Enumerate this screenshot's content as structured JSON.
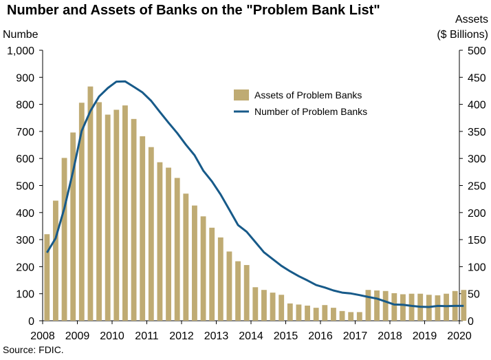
{
  "chart_data": {
    "type": "bar+line",
    "title": "Number and Assets of Banks on the \"Problem Bank List\"",
    "ylabel_left": "Numbe",
    "ylabel_right_line1": "Assets",
    "ylabel_right_line2": "($ Billions)",
    "source": "Source: FDIC.",
    "ylim_left": [
      0,
      1000
    ],
    "ylim_right": [
      0,
      500
    ],
    "yticks_left": [
      "0",
      "100",
      "200",
      "300",
      "400",
      "500",
      "600",
      "700",
      "800",
      "900",
      "1,000"
    ],
    "yticks_right": [
      "0",
      "50",
      "100",
      "150",
      "200",
      "250",
      "300",
      "350",
      "400",
      "450",
      "500"
    ],
    "xticks": [
      "2008",
      "2009",
      "2010",
      "2011",
      "2012",
      "2013",
      "2014",
      "2015",
      "2016",
      "2017",
      "2018",
      "2019",
      "2020"
    ],
    "legend_placement": "center-right",
    "x_start_year": 2008,
    "points_per_year": 4,
    "series": [
      {
        "name": "Assets of Problem Banks",
        "kind": "bar",
        "axis": "right",
        "color": "#bfab73",
        "values": [
          160,
          222,
          301,
          348,
          403,
          433,
          404,
          381,
          390,
          398,
          373,
          341,
          321,
          293,
          283,
          264,
          235,
          213,
          193,
          172,
          154,
          128,
          110,
          103,
          62,
          57,
          52,
          48,
          32,
          30,
          28,
          24,
          29,
          24,
          18,
          16,
          16,
          57,
          56,
          55,
          51,
          49,
          50,
          50,
          48,
          47,
          50,
          55,
          57
        ]
      },
      {
        "name": "Number of Problem Banks",
        "kind": "line",
        "axis": "left",
        "color": "#175a89",
        "values": [
          252,
          305,
          416,
          552,
          702,
          775,
          829,
          860,
          884,
          885,
          865,
          844,
          813,
          772,
          732,
          694,
          651,
          612,
          555,
          515,
          467,
          411,
          354,
          329,
          291,
          253,
          228,
          203,
          183,
          165,
          149,
          132,
          123,
          112,
          104,
          101,
          95,
          88,
          82,
          71,
          60,
          59,
          55,
          52,
          51,
          55,
          54,
          55,
          55
        ]
      }
    ]
  }
}
